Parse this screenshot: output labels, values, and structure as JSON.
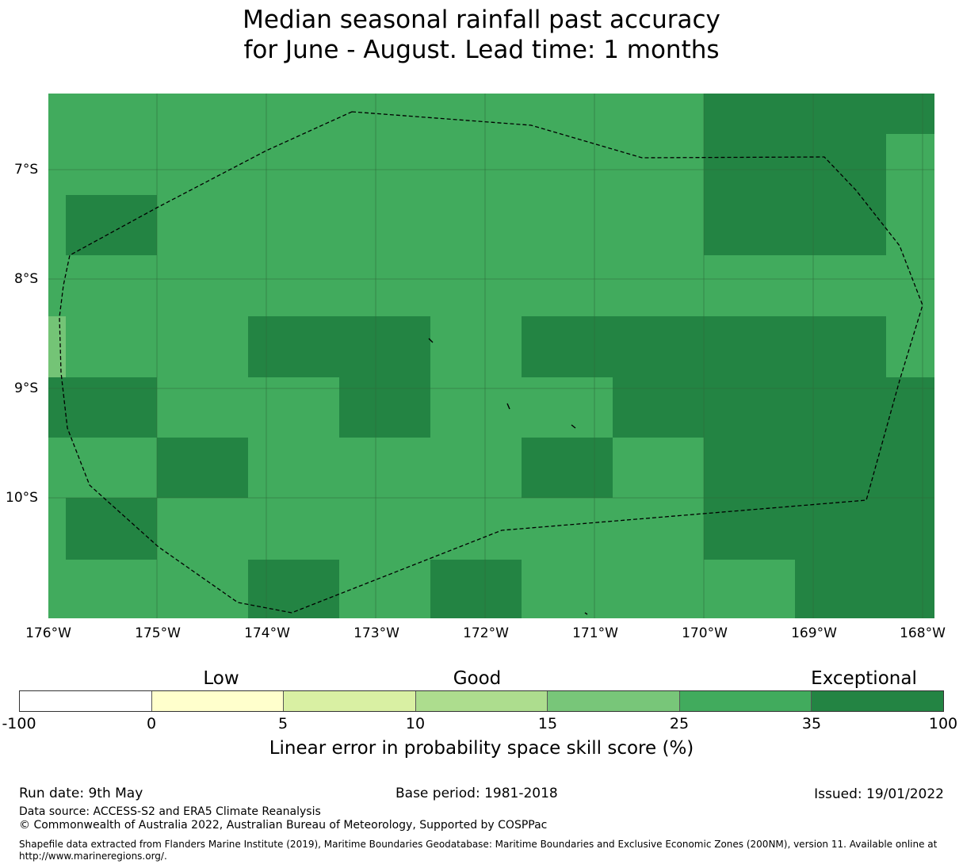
{
  "title": {
    "line1": "Median seasonal rainfall past accuracy",
    "line2": "for June - August. Lead time: 1 months"
  },
  "map": {
    "lat_labels": [
      "7°S",
      "8°S",
      "9°S",
      "10°S"
    ],
    "lon_labels": [
      "176°W",
      "175°W",
      "174°W",
      "173°W",
      "172°W",
      "171°W",
      "170°W",
      "169°W",
      "168°W"
    ],
    "colors": {
      "skill_25_35": "#41ab5d",
      "skill_35_100": "#238443",
      "skill_15_25": "#74c476",
      "eez_boundary": "#000000",
      "gridline": "#2d6b3a"
    }
  },
  "colorbar": {
    "categories": [
      "Low",
      "Good",
      "Exceptional"
    ],
    "ticks": [
      "-100",
      "0",
      "5",
      "10",
      "15",
      "25",
      "35",
      "100"
    ],
    "colors": [
      "#ffffff",
      "#ffffcc",
      "#d9f0a3",
      "#addd8e",
      "#78c679",
      "#41ab5d",
      "#238443"
    ],
    "label": "Linear error in probability space skill score (%)"
  },
  "footer": {
    "run_date": "Run date: 9th May",
    "base_period": "Base period: 1981-2018",
    "issued": "Issued: 19/01/2022",
    "data_source": "Data source: ACCESS-S2 and ERA5 Climate Reanalysis",
    "copyright": "© Commonwealth of Australia 2022, Australian Bureau of Meteorology, Supported by COSPPac",
    "shapefile_line1": "Shapefile data extracted from Flanders Marine Institute (2019), Maritime Boundaries Geodatabase: Maritime Boundaries and Exclusive Economic Zones (200NM), version 11. Available online at",
    "shapefile_line2": "http://www.marineregions.org/."
  }
}
